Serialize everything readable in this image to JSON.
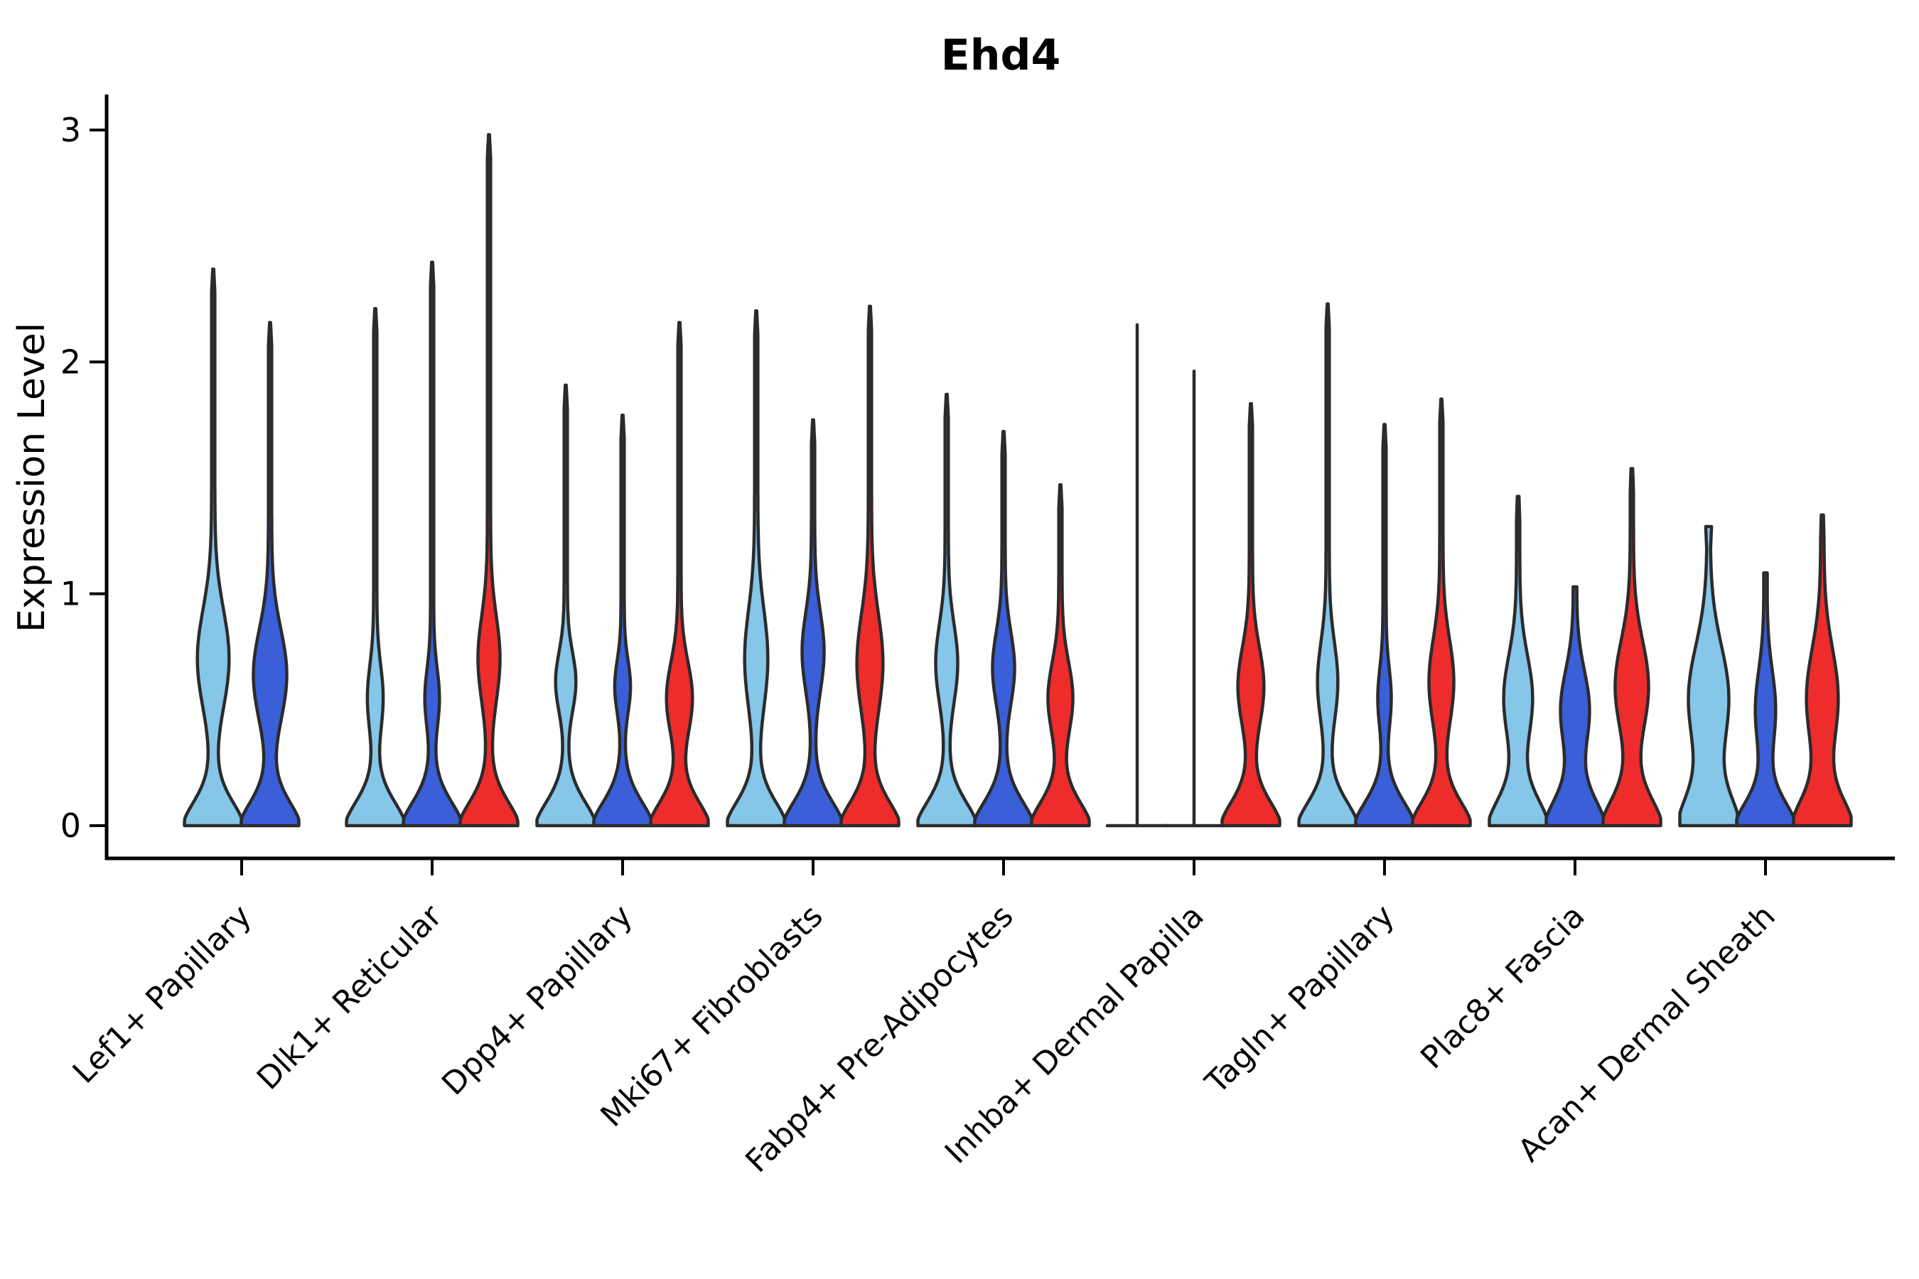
{
  "title": "Ehd4",
  "axes": {
    "ylabel": "Expression Level",
    "yticks": [
      0,
      1,
      2,
      3
    ]
  },
  "colors": {
    "lightblue": "#85C6E9",
    "blue": "#3A5FD9",
    "red": "#EE2C2C",
    "outline": "#2B2B2B",
    "axis": "#000000"
  },
  "chart_data": {
    "type": "violin",
    "title": "Ehd4",
    "xlabel": "",
    "ylabel": "Expression Level",
    "ylim": [
      0,
      3.1
    ],
    "yticks": [
      0,
      1,
      2,
      3
    ],
    "legend_position": "none",
    "grid": false,
    "series_order": [
      "lightblue",
      "blue",
      "red"
    ],
    "categories": [
      "Lef1+ Papillary",
      "Dlk1+ Reticular",
      "Dpp4+ Papillary",
      "Mki67+ Fibroblasts",
      "Fabp4+ Pre-Adipocytes",
      "Inhba+ Dermal Papilla",
      "Tagln+ Papillary",
      "Plac8+ Fascia",
      "Acan+ Dermal Sheath"
    ],
    "value_description": "Per-cell Ehd4 expression level; each violin bottom-truncated at 0 with density mass at 0, a mid bulge (mode of expressing cells), and a thin tail spike to the max value.",
    "groups": [
      {
        "category": "Lef1+ Papillary",
        "violins": [
          {
            "series": "lightblue",
            "max": 2.4,
            "mode": 0.72,
            "mode_w": 0.5,
            "mode_s": 0.3
          },
          {
            "series": "blue",
            "max": 2.17,
            "mode": 0.65,
            "mode_w": 0.53,
            "mode_s": 0.28
          }
        ]
      },
      {
        "category": "Dlk1+ Reticular",
        "violins": [
          {
            "series": "lightblue",
            "max": 2.23,
            "mode": 0.55,
            "mode_w": 0.22,
            "mode_s": 0.2
          },
          {
            "series": "blue",
            "max": 2.43,
            "mode": 0.55,
            "mode_w": 0.2,
            "mode_s": 0.18
          },
          {
            "series": "red",
            "max": 2.98,
            "mode": 0.72,
            "mode_w": 0.33,
            "mode_s": 0.26
          }
        ]
      },
      {
        "category": "Dpp4+ Papillary",
        "violins": [
          {
            "series": "lightblue",
            "max": 1.9,
            "mode": 0.62,
            "mode_w": 0.3,
            "mode_s": 0.18
          },
          {
            "series": "blue",
            "max": 1.77,
            "mode": 0.6,
            "mode_w": 0.22,
            "mode_s": 0.16
          },
          {
            "series": "red",
            "max": 2.17,
            "mode": 0.55,
            "mode_w": 0.4,
            "mode_s": 0.22
          }
        ]
      },
      {
        "category": "Mki67+ Fibroblasts",
        "violins": [
          {
            "series": "lightblue",
            "max": 2.22,
            "mode": 0.72,
            "mode_w": 0.35,
            "mode_s": 0.3
          },
          {
            "series": "blue",
            "max": 1.75,
            "mode": 0.75,
            "mode_w": 0.33,
            "mode_s": 0.24
          },
          {
            "series": "red",
            "max": 2.24,
            "mode": 0.7,
            "mode_w": 0.4,
            "mode_s": 0.3
          }
        ]
      },
      {
        "category": "Fabp4+ Pre-Adipocytes",
        "violins": [
          {
            "series": "lightblue",
            "max": 1.86,
            "mode": 0.7,
            "mode_w": 0.33,
            "mode_s": 0.24
          },
          {
            "series": "blue",
            "max": 1.7,
            "mode": 0.68,
            "mode_w": 0.33,
            "mode_s": 0.22
          },
          {
            "series": "red",
            "max": 1.47,
            "mode": 0.55,
            "mode_w": 0.38,
            "mode_s": 0.22
          }
        ]
      },
      {
        "category": "Inhba+ Dermal Papilla",
        "violins": [
          {
            "series": "lightblue",
            "max": 2.16,
            "flat": true
          },
          {
            "series": "blue",
            "max": 1.96,
            "flat": true
          },
          {
            "series": "red",
            "max": 1.82,
            "mode": 0.6,
            "mode_w": 0.4,
            "mode_s": 0.24
          }
        ]
      },
      {
        "category": "Tagln+ Papillary",
        "violins": [
          {
            "series": "lightblue",
            "max": 2.25,
            "mode": 0.62,
            "mode_w": 0.3,
            "mode_s": 0.24
          },
          {
            "series": "blue",
            "max": 1.73,
            "mode": 0.55,
            "mode_w": 0.18,
            "mode_s": 0.18
          },
          {
            "series": "red",
            "max": 1.84,
            "mode": 0.62,
            "mode_w": 0.38,
            "mode_s": 0.26
          }
        ]
      },
      {
        "category": "Plac8+ Fascia",
        "violins": [
          {
            "series": "lightblue",
            "max": 1.42,
            "mode": 0.55,
            "mode_w": 0.45,
            "mode_s": 0.26,
            "base_s": 0.18,
            "tip_w": 1.2
          },
          {
            "series": "blue",
            "max": 1.03,
            "mode": 0.5,
            "mode_w": 0.45,
            "mode_s": 0.24,
            "base_s": 0.18,
            "tip_w": 2.5
          },
          {
            "series": "red",
            "max": 1.54,
            "mode": 0.6,
            "mode_w": 0.53,
            "mode_s": 0.28,
            "base_s": 0.18,
            "tip_w": 1.2
          }
        ]
      },
      {
        "category": "Acan+ Dermal Sheath",
        "violins": [
          {
            "series": "lightblue",
            "max": 1.29,
            "mode": 0.55,
            "mode_w": 0.65,
            "mode_s": 0.32,
            "base_s": 0.2,
            "tip_w": 4.0
          },
          {
            "series": "blue",
            "max": 1.09,
            "mode": 0.5,
            "mode_w": 0.3,
            "mode_s": 0.24,
            "tip_w": 2.5
          },
          {
            "series": "red",
            "max": 1.34,
            "mode": 0.55,
            "mode_w": 0.5,
            "mode_s": 0.3,
            "base_s": 0.18,
            "tip_w": 1.5
          }
        ]
      }
    ]
  }
}
